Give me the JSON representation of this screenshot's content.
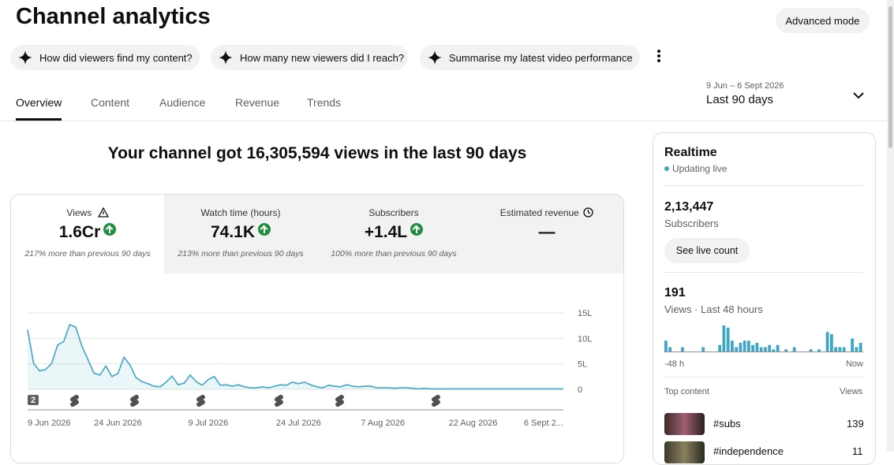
{
  "header": {
    "title": "Channel analytics",
    "advanced_button": "Advanced mode"
  },
  "suggestions": [
    "How did viewers find my content?",
    "How many new viewers did I reach?",
    "Summarise my latest video performance"
  ],
  "tabs": [
    "Overview",
    "Content",
    "Audience",
    "Revenue",
    "Trends"
  ],
  "date_range": {
    "dates": "9 Jun – 6 Sept 2026",
    "label": "Last 90 days"
  },
  "headline": "Your channel got 16,305,594 views in the last 90 days",
  "metrics": [
    {
      "label": "Views",
      "value": "1.6Cr",
      "note": "217% more than previous 90 days"
    },
    {
      "label": "Watch time (hours)",
      "value": "74.1K",
      "note": "213% more than previous 90 days"
    },
    {
      "label": "Subscribers",
      "value": "+1.4L",
      "note": "100% more than previous 90 days"
    },
    {
      "label": "Estimated revenue",
      "value": "—"
    }
  ],
  "chart_data": {
    "type": "line",
    "color": "#3ea6c6",
    "categories": [
      "9 Jun 2026",
      null,
      null,
      null,
      null,
      null,
      null,
      null,
      null,
      null,
      null,
      null,
      null,
      null,
      null,
      "24 Jun 2026",
      null,
      null,
      null,
      null,
      null,
      null,
      null,
      null,
      null,
      null,
      null,
      null,
      null,
      null,
      "9 Jul 2026",
      null,
      null,
      null,
      null,
      null,
      null,
      null,
      null,
      null,
      null,
      null,
      null,
      null,
      null,
      "24 Jul 2026",
      null,
      null,
      null,
      null,
      null,
      null,
      null,
      null,
      null,
      null,
      null,
      null,
      null,
      "7 Aug 2026",
      null,
      null,
      null,
      null,
      null,
      null,
      null,
      null,
      null,
      null,
      null,
      null,
      null,
      null,
      "22 Aug 2026",
      null,
      null,
      null,
      null,
      null,
      null,
      null,
      null,
      null,
      null,
      null,
      null,
      null,
      null,
      "6 Sept 2..."
    ],
    "values": [
      11.7,
      5.1,
      3.6,
      3.9,
      5.1,
      8.7,
      9.4,
      12.7,
      12.2,
      8.5,
      5.9,
      3.2,
      2.8,
      4.6,
      2.5,
      3.1,
      6.3,
      4.8,
      2.3,
      1.5,
      1.1,
      0.6,
      0.5,
      1.4,
      2.6,
      0.9,
      1.2,
      2.8,
      1.5,
      0.8,
      1.9,
      2.5,
      0.8,
      0.9,
      0.6,
      0.9,
      0.5,
      0.3,
      0.3,
      0.5,
      0.3,
      0.6,
      0.9,
      0.8,
      1.4,
      1.1,
      1.4,
      0.9,
      0.5,
      0.3,
      0.8,
      0.6,
      0.5,
      0.9,
      0.6,
      0.5,
      0.6,
      0.6,
      0.3,
      0.3,
      0.3,
      0.2,
      0.3,
      0.3,
      0.2,
      0.1,
      0.2,
      0.1,
      0.1,
      0.1,
      0.1,
      0.1,
      0.1,
      0.1,
      0.1,
      0.1,
      0.1,
      0.1,
      0.1,
      0.1,
      0.1,
      0.1,
      0.1,
      0.1,
      0.1,
      0.1,
      0.1,
      0.1,
      0.1,
      0.1
    ],
    "ylim": [
      0,
      15
    ],
    "yticks": [
      {
        "value": 0,
        "label": "0"
      },
      {
        "value": 5,
        "label": "5L"
      },
      {
        "value": 10,
        "label": "10L"
      },
      {
        "value": 15,
        "label": "15L"
      }
    ],
    "grid": true
  },
  "realtime": {
    "title": "Realtime",
    "status": "Updating live",
    "subscribers": {
      "value": "2,13,447",
      "label": "Subscribers"
    },
    "live_button": "See live count",
    "views": {
      "value": "191",
      "label": "Views · Last 48 hours"
    },
    "chart_data": {
      "type": "bar",
      "color": "#3ea6c6",
      "values": [
        5,
        2,
        0,
        0,
        2,
        0,
        0,
        0,
        0,
        2,
        0,
        0,
        0,
        3,
        12,
        11,
        5,
        2,
        4,
        5,
        5,
        3,
        4,
        2,
        2,
        3,
        1,
        3,
        0,
        1,
        0,
        2,
        0,
        0,
        0,
        1,
        0,
        1,
        0,
        9,
        8,
        2,
        2,
        2,
        0,
        6,
        2,
        4
      ],
      "ylim": [
        0,
        12
      ],
      "x_start": "-48 h",
      "x_end": "Now"
    },
    "top_content": {
      "title": "Top content",
      "column": "Views",
      "rows": [
        {
          "name": "#subs",
          "views": "139"
        },
        {
          "name": "#independence",
          "views": "11"
        }
      ]
    }
  }
}
